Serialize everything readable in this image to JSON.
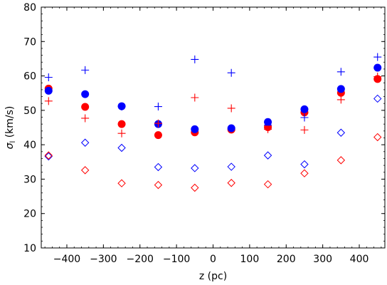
{
  "chart_data": {
    "type": "scatter",
    "title": "",
    "xlabel": "z (pc)",
    "ylabel_main": "σ",
    "ylabel_sub": "l",
    "ylabel_unit": " (km/s)",
    "xlim": [
      -470,
      470
    ],
    "ylim": [
      10,
      80
    ],
    "xticks": [
      -400,
      -300,
      -200,
      -100,
      0,
      100,
      200,
      300,
      400
    ],
    "xtick_labels": [
      "−400",
      "−300",
      "−200",
      "−100",
      "0",
      "100",
      "200",
      "300",
      "400"
    ],
    "yticks": [
      10,
      20,
      30,
      40,
      50,
      60,
      70,
      80
    ],
    "ytick_labels": [
      "10",
      "20",
      "30",
      "40",
      "50",
      "60",
      "70",
      "80"
    ],
    "x_minor_step": 20,
    "y_minor_step": 2,
    "grid": false,
    "legend": "none",
    "series": [
      {
        "marker": "circle-filled",
        "color": "#ff0000",
        "x": [
          -450,
          -350,
          -250,
          -150,
          -50,
          50,
          150,
          250,
          350,
          450
        ],
        "y": [
          56.3,
          51.0,
          46.0,
          42.8,
          43.6,
          44.4,
          45.1,
          49.4,
          55.1,
          59.1
        ]
      },
      {
        "marker": "circle-filled",
        "color": "#0000ff",
        "x": [
          -450,
          -350,
          -250,
          -150,
          -50,
          50,
          150,
          250,
          350,
          450
        ],
        "y": [
          55.7,
          54.7,
          51.2,
          46.0,
          44.5,
          44.8,
          46.6,
          50.3,
          56.2,
          62.4
        ]
      },
      {
        "marker": "plus",
        "color": "#0000ff",
        "x": [
          -450,
          -350,
          -250,
          -150,
          -50,
          50,
          150,
          250,
          350,
          450
        ],
        "y": [
          59.6,
          61.7,
          51.1,
          51.1,
          64.8,
          60.9,
          45.7,
          47.9,
          61.2,
          65.5
        ]
      },
      {
        "marker": "plus",
        "color": "#ff0000",
        "x": [
          -450,
          -350,
          -250,
          -150,
          -50,
          50,
          150,
          250,
          350,
          450
        ],
        "y": [
          52.7,
          47.7,
          43.3,
          46.2,
          53.7,
          50.6,
          44.5,
          44.3,
          53.1,
          59.8
        ]
      },
      {
        "marker": "diamond-open",
        "color": "#0000ff",
        "x": [
          -450,
          -350,
          -250,
          -150,
          -50,
          50,
          150,
          250,
          350,
          450
        ],
        "y": [
          36.6,
          40.6,
          39.1,
          33.5,
          33.2,
          33.6,
          36.9,
          34.3,
          43.5,
          53.4
        ]
      },
      {
        "marker": "diamond-open",
        "color": "#ff0000",
        "x": [
          -450,
          -350,
          -250,
          -150,
          -50,
          50,
          150,
          250,
          350,
          450
        ],
        "y": [
          36.9,
          32.6,
          28.8,
          28.3,
          27.5,
          28.9,
          28.5,
          31.7,
          35.5,
          42.2
        ]
      }
    ]
  }
}
